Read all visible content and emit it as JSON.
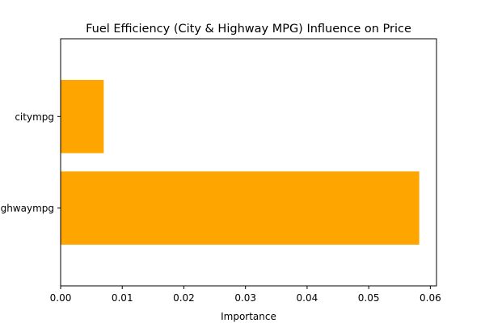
{
  "chart_data": {
    "type": "bar",
    "orientation": "horizontal",
    "title": "Fuel Efficiency (City & Highway MPG) Influence on Price",
    "xlabel": "Importance",
    "ylabel": "",
    "categories": [
      "citympg",
      "highwaympg"
    ],
    "values": [
      0.007,
      0.0582
    ],
    "xlim": [
      0,
      0.061
    ],
    "xticks": [
      0.0,
      0.01,
      0.02,
      0.03,
      0.04,
      0.05,
      0.06
    ],
    "xtick_labels": [
      "0.00",
      "0.01",
      "0.02",
      "0.03",
      "0.04",
      "0.05",
      "0.06"
    ],
    "bar_color": "#ffa500",
    "grid": false,
    "legend": "none"
  }
}
